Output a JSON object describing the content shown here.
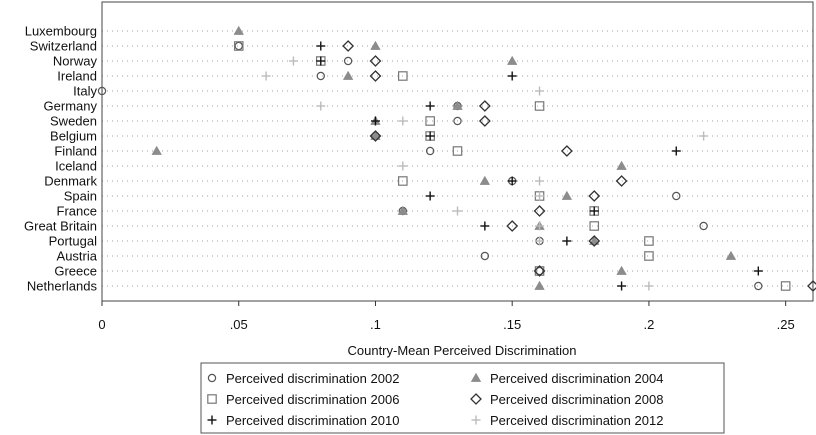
{
  "chart_data": {
    "type": "scatter",
    "title": "",
    "xlabel": "Country-Mean Perceived Discrimination",
    "ylabel": "",
    "xlim": [
      0,
      0.26
    ],
    "x_ticks": [
      {
        "value": 0,
        "label": "0"
      },
      {
        "value": 0.05,
        "label": ".05"
      },
      {
        "value": 0.1,
        "label": ".1"
      },
      {
        "value": 0.15,
        "label": ".15"
      },
      {
        "value": 0.2,
        "label": ".2"
      },
      {
        "value": 0.25,
        "label": ".25"
      }
    ],
    "grid": "dotted horizontal lines per country",
    "legend_position": "bottom",
    "categories": [
      "Luxembourg",
      "Switzerland",
      "Norway",
      "Ireland",
      "Italy",
      "Germany",
      "Sweden",
      "Belgium",
      "Finland",
      "Iceland",
      "Denmark",
      "Spain",
      "France",
      "Great Britain",
      "Portugal",
      "Austria",
      "Greece",
      "Netherlands"
    ],
    "series": [
      {
        "name": "Perceived discrimination 2002",
        "marker": "circle",
        "color": "#555555",
        "values": [
          null,
          0.05,
          0.09,
          0.08,
          0.0,
          0.13,
          0.13,
          0.1,
          0.12,
          null,
          0.15,
          0.21,
          0.11,
          0.22,
          0.16,
          0.14,
          0.16,
          0.24
        ]
      },
      {
        "name": "Perceived discrimination 2004",
        "marker": "triangle",
        "color": "#8c8c8c",
        "values": [
          0.05,
          0.1,
          0.15,
          0.09,
          null,
          0.13,
          0.1,
          0.1,
          0.02,
          0.19,
          0.14,
          0.17,
          0.11,
          0.16,
          0.18,
          0.23,
          0.19,
          0.16
        ]
      },
      {
        "name": "Perceived discrimination 2006",
        "marker": "square",
        "color": "#777777",
        "values": [
          null,
          0.05,
          0.08,
          0.11,
          null,
          0.16,
          0.12,
          0.12,
          0.13,
          null,
          0.11,
          0.16,
          0.18,
          0.18,
          0.2,
          0.2,
          0.16,
          0.25
        ]
      },
      {
        "name": "Perceived discrimination 2008",
        "marker": "diamond",
        "color": "#333333",
        "values": [
          null,
          0.09,
          0.1,
          0.1,
          null,
          0.14,
          0.14,
          0.1,
          0.17,
          null,
          0.19,
          0.18,
          0.16,
          0.15,
          0.18,
          null,
          0.16,
          0.26
        ]
      },
      {
        "name": "Perceived discrimination 2010",
        "marker": "plus",
        "color": "#111111",
        "values": [
          null,
          0.08,
          0.08,
          0.15,
          null,
          0.12,
          0.1,
          0.12,
          0.21,
          null,
          0.15,
          0.12,
          0.18,
          0.14,
          0.17,
          null,
          0.24,
          0.19
        ]
      },
      {
        "name": "Perceived discrimination 2012",
        "marker": "plus",
        "color": "#bbbbbb",
        "values": [
          null,
          null,
          0.07,
          0.06,
          0.16,
          0.08,
          0.11,
          0.22,
          null,
          0.11,
          0.16,
          0.16,
          0.13,
          0.16,
          0.16,
          null,
          null,
          0.2
        ]
      }
    ]
  }
}
